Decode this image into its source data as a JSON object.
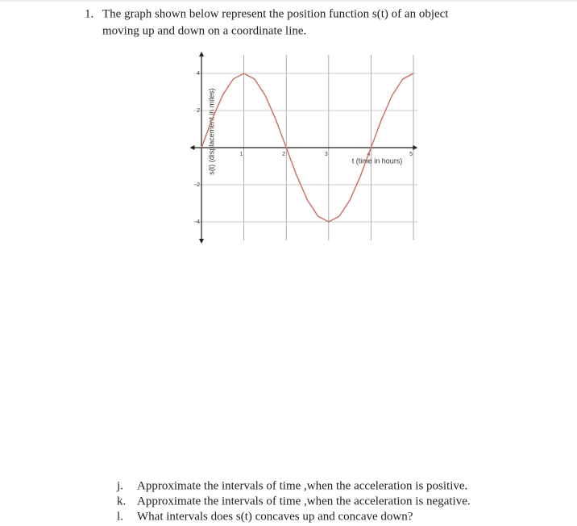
{
  "question": {
    "number": "1.",
    "lines": [
      "The graph shown below represent the position function s(t) of an object",
      "moving up and down on a coordinate line."
    ]
  },
  "chart_data": {
    "type": "line",
    "x_label": "t (time in hours)",
    "y_label": "s(t) (displacement in miles)",
    "x": [
      0,
      0.25,
      0.5,
      0.75,
      1,
      1.25,
      1.5,
      1.75,
      2,
      2.25,
      2.5,
      2.75,
      3,
      3.25,
      3.5,
      3.75,
      4,
      4.25,
      4.5,
      4.75,
      5
    ],
    "series": [
      {
        "color": "#c9766c",
        "values": [
          0,
          1.53,
          2.83,
          3.7,
          4,
          3.7,
          2.83,
          1.53,
          0,
          -1.53,
          -2.83,
          -3.7,
          -4,
          -3.7,
          -2.83,
          -1.53,
          0,
          1.53,
          2.83,
          3.7,
          4
        ]
      }
    ],
    "xlim": [
      -0.2,
      5.1
    ],
    "ylim": [
      -5,
      5
    ],
    "xticks": [
      1,
      2,
      3,
      4,
      5
    ],
    "yticks": [
      -4,
      -2,
      2,
      4
    ],
    "grid": true
  },
  "parts": [
    {
      "label": "j.",
      "text": "Approximate the intervals of time ,when the acceleration is positive."
    },
    {
      "label": "k.",
      "text": "Approximate the intervals of time ,when the acceleration is negative."
    },
    {
      "label": "l.",
      "text": "What intervals does s(t) concaves up and concave down?"
    }
  ]
}
